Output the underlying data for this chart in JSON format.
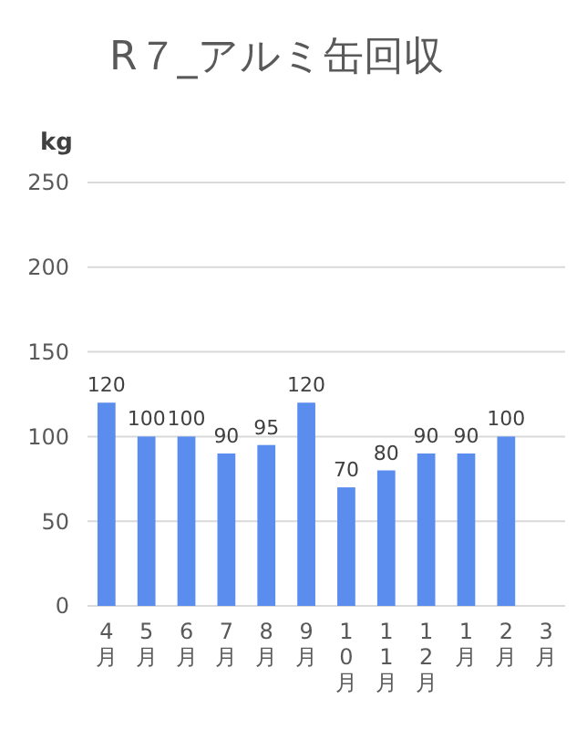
{
  "chart_data": {
    "type": "bar",
    "title": "R７_アルミ缶回収",
    "ylabel": "kg",
    "categories": [
      "4月",
      "5月",
      "6月",
      "7月",
      "8月",
      "9月",
      "10月",
      "11月",
      "12月",
      "1月",
      "2月",
      "3月"
    ],
    "values": [
      120,
      100,
      100,
      90,
      95,
      120,
      70,
      80,
      90,
      90,
      100,
      null
    ],
    "color": "#5b8def",
    "ylim": [
      0,
      250
    ],
    "yticks": [
      0,
      50,
      100,
      150,
      200,
      250
    ],
    "grid": "y",
    "data_labels": true
  }
}
